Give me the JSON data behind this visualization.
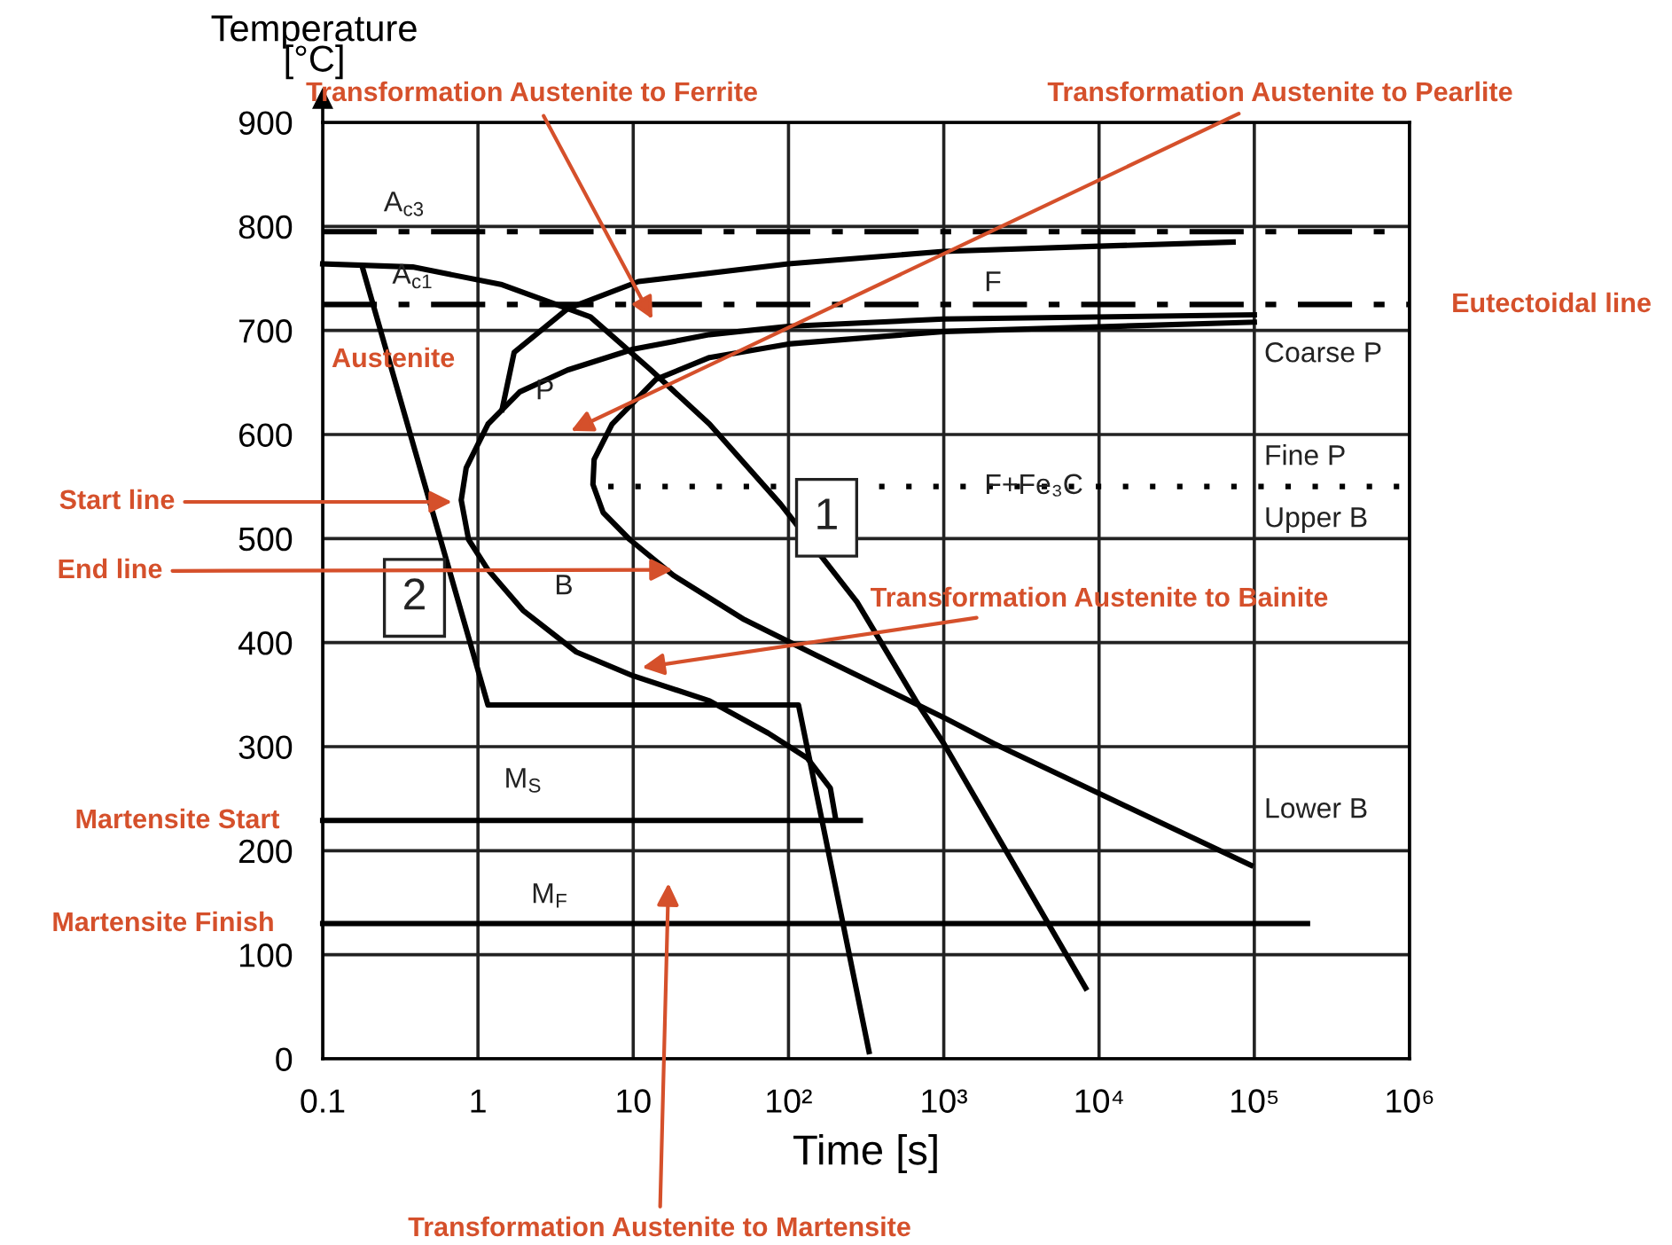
{
  "chart_data": {
    "type": "line",
    "xlabel": "Time [s]",
    "ylabel": "Temperature\n[°C]",
    "log": "x",
    "xlim": [
      0.1,
      1000000
    ],
    "ylim": [
      0,
      900
    ],
    "xticks": [
      0.1,
      1,
      10,
      {
        "value": 100,
        "label": "10²"
      },
      {
        "value": 1000,
        "label": "10³"
      },
      {
        "value": 10000,
        "label": "10⁴"
      },
      {
        "value": 100000,
        "label": "10⁵"
      },
      {
        "value": 1000000,
        "label": "10⁶"
      }
    ],
    "yticks": [
      0,
      100,
      200,
      300,
      400,
      500,
      600,
      700,
      800,
      900
    ],
    "grid": true,
    "legend": false,
    "marker": "none",
    "series": [
      {
        "color": "#000000",
        "line_style": "solid",
        "x": [
          1.43,
          1.71,
          3.78,
          10.8,
          100,
          1000,
          10000,
          73000
        ],
        "values": [
          624,
          679,
          721,
          747,
          764,
          776,
          781,
          785
        ]
      },
      {
        "color": "#000000",
        "line_style": "solid",
        "x": [
          100000,
          1000,
          100,
          31,
          10,
          3.78,
          1.86,
          1.16,
          0.84,
          0.78,
          0.87,
          1.16,
          1.95,
          4.3,
          10,
          31,
          74,
          132,
          186,
          201
        ],
        "values": [
          715,
          711,
          704,
          696,
          682,
          662,
          641,
          610,
          568,
          537,
          499,
          470,
          431,
          391,
          368,
          344,
          313,
          289,
          260,
          231
        ]
      },
      {
        "color": "#000000",
        "line_style": "solid",
        "x": [
          100000,
          1000,
          100,
          31,
          14,
          7.3,
          5.6,
          5.5,
          6.4,
          9.5,
          18,
          52,
          150,
          1000,
          2100,
          10000,
          95000
        ],
        "values": [
          708,
          699,
          687,
          674,
          653,
          610,
          576,
          552,
          525,
          499,
          465,
          422,
          388,
          328,
          303,
          255,
          186
        ]
      },
      {
        "color": "#000000",
        "line_style": "solid",
        "x": [
          0.1,
          0.38,
          1.43,
          5.3,
          13,
          31,
          89,
          276,
          675,
          1000,
          8200
        ],
        "values": [
          764,
          761,
          744,
          713,
          662,
          610,
          533,
          439,
          342,
          303,
          68
        ]
      },
      {
        "color": "#000000",
        "line_style": "solid",
        "x": [
          0.18,
          1.16,
          116,
          330
        ],
        "values": [
          761,
          340,
          340,
          7
        ]
      },
      {
        "color": "#000000",
        "line_style": "solid",
        "x": [
          0.1,
          290
        ],
        "values": [
          229,
          229
        ]
      },
      {
        "color": "#000000",
        "line_style": "solid",
        "x": [
          0.1,
          220000
        ],
        "values": [
          130,
          130
        ]
      },
      {
        "color": "#000000",
        "line_style": "dashed",
        "x": [
          0.1,
          740000
        ],
        "values": [
          795,
          795
        ]
      },
      {
        "color": "#000000",
        "line_style": "dashed",
        "x": [
          0.1,
          1000000
        ],
        "values": [
          725,
          725
        ]
      },
      {
        "color": "#000000",
        "line_style": "dotted",
        "x": [
          6.9,
          1000000
        ],
        "values": [
          550,
          550
        ]
      }
    ],
    "annotations": [
      "A$_{c3}$",
      {
        "text": "A$_{c1}$",
        "x": 0.38,
        "y": 752
      },
      "F",
      {
        "text": "P",
        "x": 2.7,
        "y": 641
      },
      "Coarse P",
      "Fine P",
      "Upper B",
      "Lower B",
      {
        "text": "F+Fe₃C",
        "x": 3800,
        "y": 550
      },
      "B",
      "M$_{S}$",
      "M$_{F}$",
      {
        "text": "1",
        "x": 176,
        "y": 520
      },
      {
        "text": "2",
        "x": 0.39,
        "y": 443
      },
      "Austenite",
      "Transformation Austenite to Ferrite",
      "Transformation Austenite to Pearlite",
      {
        "text": "Eutectoidal line",
        "x": 1000000,
        "y": 725
      },
      "Start line",
      {
        "text": "End line",
        "x": 18,
        "y": 470
      },
      {
        "text": "Transformation Austenite to Bainite",
        "x": 11.4,
        "y": 376
      },
      {
        "text": "Martensite Start",
        "x": 0.1,
        "y": 229
      },
      {
        "text": "Martensite Finish",
        "x": 0.1,
        "y": 130
      },
      "Transformation Austenite to Martensite"
    ]
  }
}
